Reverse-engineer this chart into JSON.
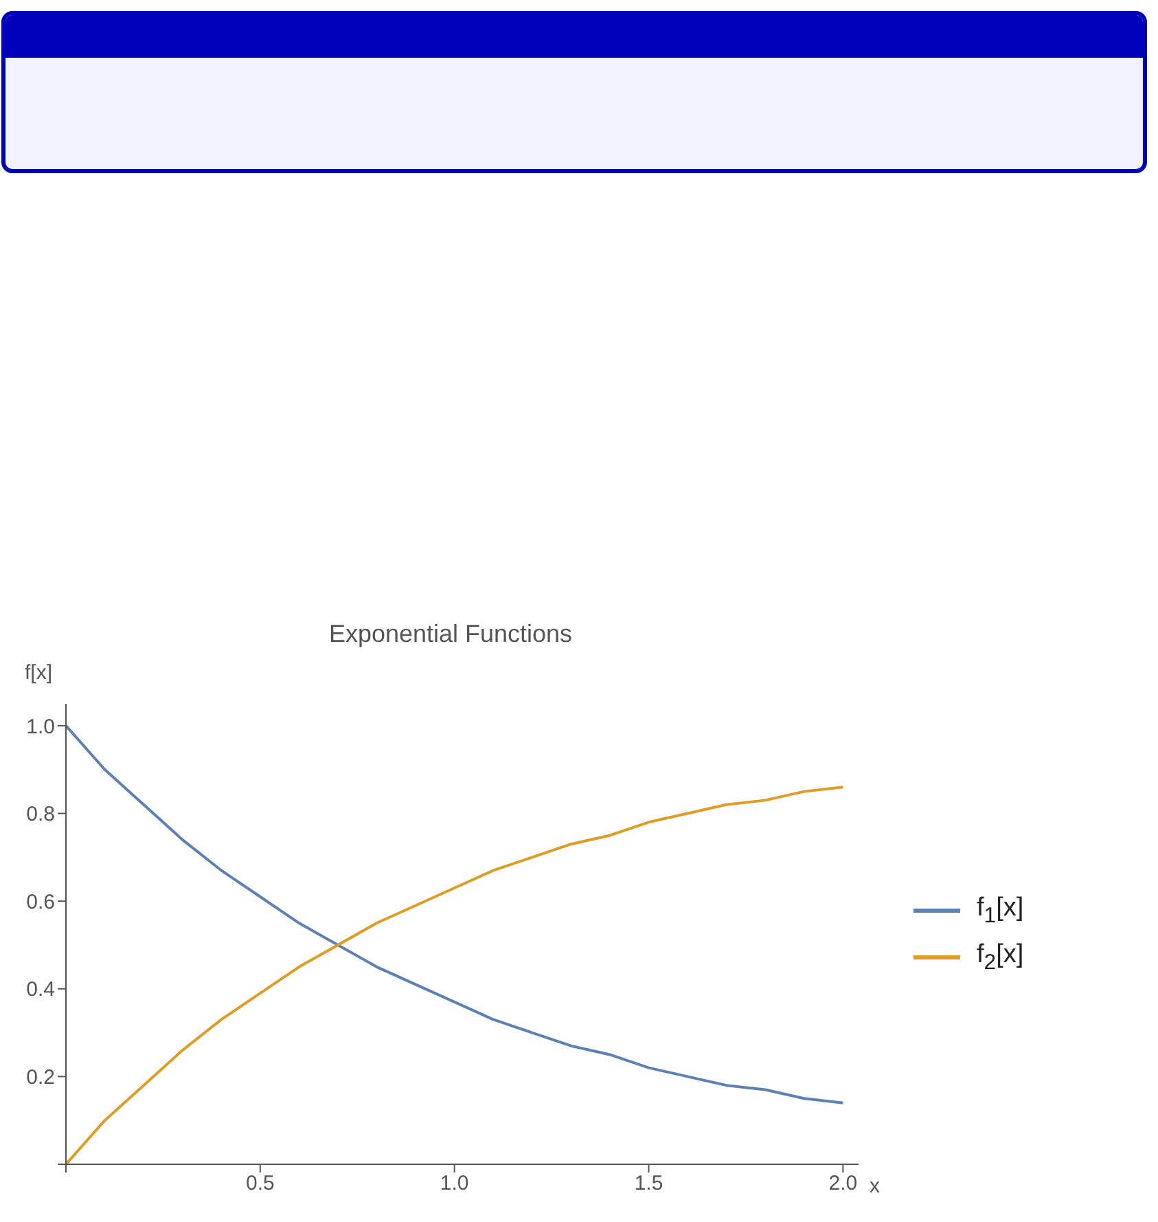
{
  "chart_data": {
    "type": "line",
    "title": "Exponential Functions",
    "xlabel": "x",
    "ylabel": "f[x]",
    "x": [
      0,
      0.1,
      0.2,
      0.3,
      0.4,
      0.5,
      0.6,
      0.7,
      0.8,
      0.9,
      1.0,
      1.1,
      1.2,
      1.3,
      1.4,
      1.5,
      1.6,
      1.7,
      1.8,
      1.9,
      2.0
    ],
    "series": [
      {
        "name": "f$_{1}$[x]",
        "color": "#5e81b5",
        "values": [
          1,
          0.9,
          0.82,
          0.74,
          0.67,
          0.61,
          0.55,
          0.5,
          0.45,
          0.41,
          0.37,
          0.33,
          0.3,
          0.27,
          0.25,
          0.22,
          0.2,
          0.18,
          0.17,
          0.15,
          0.14
        ]
      },
      {
        "name": "f$_{2}$[x]",
        "color": "#e19c24",
        "values": [
          0,
          0.1,
          0.18,
          0.26,
          0.33,
          0.39,
          0.45,
          0.5,
          0.55,
          0.59,
          0.63,
          0.67,
          0.7,
          0.73,
          0.75,
          0.78,
          0.8,
          0.82,
          0.83,
          0.85,
          0.86
        ]
      }
    ],
    "xlim": [
      0,
      2.04
    ],
    "ylim": [
      0,
      1.05
    ],
    "xticks": [
      {
        "value": 0,
        "label": null
      },
      {
        "value": 0.5,
        "label": "0.5"
      },
      {
        "value": 1,
        "label": "1.0"
      },
      {
        "value": 1.5,
        "label": "1.5"
      },
      {
        "value": 2,
        "label": "2.0"
      }
    ],
    "yticks": [
      {
        "value": 0,
        "label": null
      },
      {
        "value": 0.2,
        "label": "0.2"
      },
      {
        "value": 0.4,
        "label": "0.4"
      },
      {
        "value": 0.6,
        "label": "0.6"
      },
      {
        "value": 0.8,
        "label": "0.8"
      },
      {
        "value": 1,
        "label": "1.0"
      }
    ],
    "grid": false,
    "legend": "right",
    "marker": "none",
    "line_style": "solid"
  }
}
